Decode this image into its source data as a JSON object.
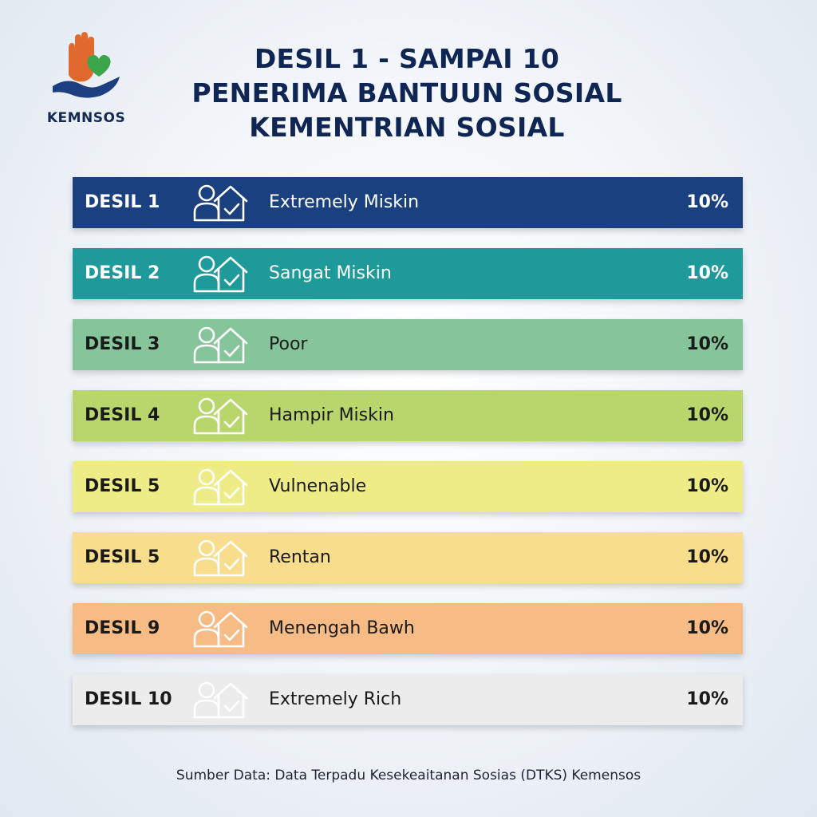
{
  "logo": {
    "text": "KEMNSOS",
    "icon": "hand-heart-logo-icon"
  },
  "title": {
    "line1": "DESIL 1 - SAMPAI 10",
    "line2": "PENERIMA BANTUUN SOSIAL",
    "line3": "KEMENTRIAN SOSIAL"
  },
  "rows": [
    {
      "decile": "DESIL 1",
      "label": "Extremely Miskin",
      "percent": "10%",
      "bg": "#1a407f",
      "text_color": "#ffffff",
      "icon_color": "#ffffff"
    },
    {
      "decile": "DESIL 2",
      "label": "Sangat Miskin",
      "percent": "10%",
      "bg": "#1e9a9b",
      "text_color": "#ffffff",
      "icon_color": "#ffffff"
    },
    {
      "decile": "DESIL 3",
      "label": "Poor",
      "percent": "10%",
      "bg": "#86c59a",
      "text_color": "#1a1a1a",
      "icon_color": "#ffffff"
    },
    {
      "decile": "DESIL 4",
      "label": "Hampir Miskin",
      "percent": "10%",
      "bg": "#b8d66c",
      "text_color": "#1a1a1a",
      "icon_color": "#ffffff"
    },
    {
      "decile": "DESIL 5",
      "label": "Vulnenable",
      "percent": "10%",
      "bg": "#eeec86",
      "text_color": "#1a1a1a",
      "icon_color": "#ffffff"
    },
    {
      "decile": "DESIL 5",
      "label": "Rentan",
      "percent": "10%",
      "bg": "#f7dd8c",
      "text_color": "#1a1a1a",
      "icon_color": "#ffffff"
    },
    {
      "decile": "DESIL 9",
      "label": "Menengah Bawh",
      "percent": "10%",
      "bg": "#f7bb86",
      "text_color": "#1a1a1a",
      "icon_color": "#ffffff"
    },
    {
      "decile": "DESIL 10",
      "label": "Extremely Rich",
      "percent": "10%",
      "bg": "#ececec",
      "text_color": "#1a1a1a",
      "icon_color": "#ffffff"
    }
  ],
  "row_icon": "person-house-check-icon",
  "source": "Sumber Data: Data Terpadu Kesekeaitanan Sosias (DTKS) Kemensos"
}
